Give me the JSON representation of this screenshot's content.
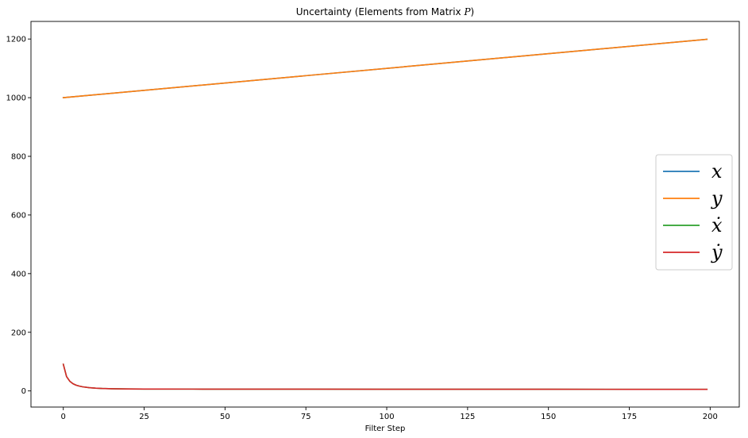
{
  "chart_data": {
    "type": "line",
    "title": "Uncertainty (Elements from Matrix P)",
    "title_prefix": "Uncertainty (Elements from Matrix ",
    "title_symbol": "P",
    "title_suffix": ")",
    "xlabel": "Filter Step",
    "ylabel": "",
    "xlim": [
      -10,
      209
    ],
    "ylim": [
      -55,
      1260
    ],
    "xticks": [
      0,
      25,
      50,
      75,
      100,
      125,
      150,
      175,
      200
    ],
    "yticks": [
      0,
      200,
      400,
      600,
      800,
      1000,
      1200
    ],
    "grid": false,
    "legend_position": "center-right",
    "series": [
      {
        "name": "x",
        "color": "#1f77b4",
        "x": [
          0,
          199
        ],
        "y": [
          1000,
          1199
        ]
      },
      {
        "name": "y",
        "color": "#ff7f0e",
        "x": [
          0,
          199
        ],
        "y": [
          1000,
          1199
        ]
      },
      {
        "name": "ẋ",
        "color": "#2ca02c",
        "x": [
          0,
          1,
          2,
          3,
          4,
          5,
          6,
          8,
          10,
          12,
          15,
          20,
          25,
          30,
          40,
          50,
          75,
          100,
          125,
          150,
          175,
          199
        ],
        "y": [
          91,
          49,
          33,
          24.5,
          19.5,
          16.3,
          14,
          11.2,
          9.4,
          8.3,
          7.4,
          6.8,
          6.5,
          6.3,
          6.2,
          6.1,
          6.0,
          5.8,
          5.7,
          5.6,
          5.5,
          5.5
        ]
      },
      {
        "name": "ẏ",
        "color": "#d62728",
        "x": [
          0,
          1,
          2,
          3,
          4,
          5,
          6,
          8,
          10,
          12,
          15,
          20,
          25,
          30,
          40,
          50,
          75,
          100,
          125,
          150,
          175,
          199
        ],
        "y": [
          91,
          49,
          33,
          24.5,
          19.5,
          16.3,
          14,
          11.2,
          9.4,
          8.3,
          7.4,
          6.8,
          6.5,
          6.3,
          6.2,
          6.1,
          6.0,
          5.8,
          5.7,
          5.6,
          5.5,
          5.5
        ]
      }
    ]
  }
}
